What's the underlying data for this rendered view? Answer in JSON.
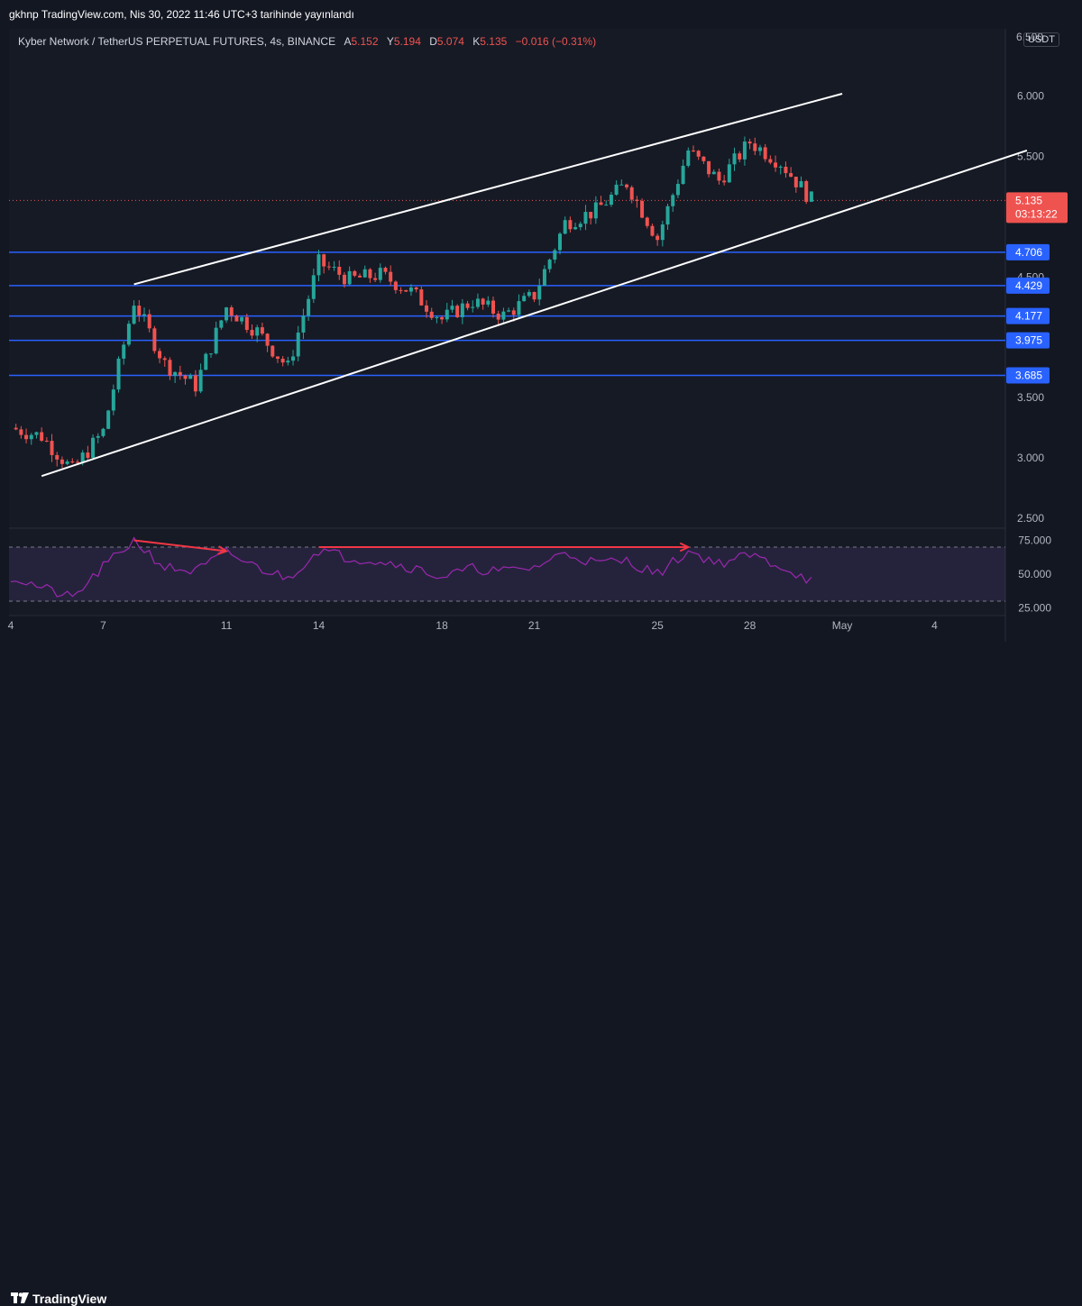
{
  "header": {
    "publisher": "gkhnp TradingView.com, Nis 30, 2022 11:46 UTC+3 tarihinde yayınlandı"
  },
  "legend": {
    "symbol": "Kyber Network / TetherUS PERPETUAL FUTURES, 4s, BINANCE",
    "open_label": "A",
    "open": "5.152",
    "high_label": "Y",
    "high": "5.194",
    "low_label": "D",
    "low": "5.074",
    "close_label": "K",
    "close": "5.135",
    "change": "−0.016 (−0.31%)"
  },
  "currency_badge": "USDT",
  "footer": {
    "brand": "TradingView"
  },
  "colors": {
    "up": "#26a69a",
    "down": "#ef5350",
    "level": "#2962ff",
    "trendline": "#ffffff",
    "rsi": "#9c27b0",
    "arrow": "#f23645"
  },
  "chart_data": {
    "type": "candlestick",
    "price_axis": {
      "min": 2.5,
      "max": 6.0,
      "ticks": [
        "2.500",
        "3.000",
        "3.500",
        "4.000",
        "4.500",
        "5.000",
        "5.500",
        "6.000"
      ],
      "top_partial_label": "6.500"
    },
    "x_axis": {
      "labels": [
        "4",
        "7",
        "11",
        "14",
        "18",
        "21",
        "25",
        "28",
        "May",
        "4"
      ]
    },
    "current_price": {
      "value": 5.135,
      "label": "5.135",
      "countdown": "03:13:22"
    },
    "horizontal_levels": [
      {
        "value": 4.706,
        "label": "4.706"
      },
      {
        "value": 4.429,
        "label": "4.429"
      },
      {
        "value": 4.177,
        "label": "4.177"
      },
      {
        "value": 3.975,
        "label": "3.975"
      },
      {
        "value": 3.685,
        "label": "3.685"
      }
    ],
    "channel": {
      "upper": {
        "from": {
          "date": "Apr 8",
          "price": 4.44
        },
        "to": {
          "date": "May 1",
          "price": 6.02
        }
      },
      "lower": {
        "from": {
          "date": "Apr 5",
          "price": 2.85
        },
        "to": {
          "date": "May 7",
          "price": 5.55
        }
      }
    },
    "approximate_path": [
      {
        "date": "Apr 4",
        "price": 3.25
      },
      {
        "date": "Apr 5",
        "price": 3.18
      },
      {
        "date": "Apr 6",
        "price": 2.9
      },
      {
        "date": "Apr 7",
        "price": 3.22
      },
      {
        "date": "Apr 8",
        "price": 4.3
      },
      {
        "date": "Apr 9",
        "price": 3.78
      },
      {
        "date": "Apr 10",
        "price": 3.6
      },
      {
        "date": "Apr 11",
        "price": 4.25
      },
      {
        "date": "Apr 12",
        "price": 4.05
      },
      {
        "date": "Apr 13",
        "price": 3.75
      },
      {
        "date": "Apr 14",
        "price": 4.62
      },
      {
        "date": "Apr 15",
        "price": 4.48
      },
      {
        "date": "Apr 16",
        "price": 4.52
      },
      {
        "date": "Apr 17",
        "price": 4.38
      },
      {
        "date": "Apr 18",
        "price": 4.15
      },
      {
        "date": "Apr 19",
        "price": 4.3
      },
      {
        "date": "Apr 20",
        "price": 4.18
      },
      {
        "date": "Apr 21",
        "price": 4.35
      },
      {
        "date": "Apr 22",
        "price": 4.95
      },
      {
        "date": "Apr 23",
        "price": 5.05
      },
      {
        "date": "Apr 24",
        "price": 5.28
      },
      {
        "date": "Apr 25",
        "price": 4.82
      },
      {
        "date": "Apr 26",
        "price": 5.55
      },
      {
        "date": "Apr 27",
        "price": 5.3
      },
      {
        "date": "Apr 28",
        "price": 5.62
      },
      {
        "date": "Apr 29",
        "price": 5.45
      },
      {
        "date": "Apr 30",
        "price": 5.14
      }
    ],
    "rsi": {
      "ticks": [
        "25.000",
        "50.000",
        "75.000"
      ],
      "upper_band": 70,
      "lower_band": 30,
      "approximate_values": [
        {
          "date": "Apr 4",
          "value": 48
        },
        {
          "date": "Apr 5",
          "value": 40
        },
        {
          "date": "Apr 6",
          "value": 32
        },
        {
          "date": "Apr 7",
          "value": 55
        },
        {
          "date": "Apr 8",
          "value": 75
        },
        {
          "date": "Apr 9",
          "value": 55
        },
        {
          "date": "Apr 10",
          "value": 52
        },
        {
          "date": "Apr 11",
          "value": 66
        },
        {
          "date": "Apr 12",
          "value": 55
        },
        {
          "date": "Apr 13",
          "value": 47
        },
        {
          "date": "Apr 14",
          "value": 68
        },
        {
          "date": "Apr 15",
          "value": 62
        },
        {
          "date": "Apr 16",
          "value": 60
        },
        {
          "date": "Apr 17",
          "value": 55
        },
        {
          "date": "Apr 18",
          "value": 48
        },
        {
          "date": "Apr 19",
          "value": 54
        },
        {
          "date": "Apr 20",
          "value": 52
        },
        {
          "date": "Apr 21",
          "value": 55
        },
        {
          "date": "Apr 22",
          "value": 66
        },
        {
          "date": "Apr 23",
          "value": 58
        },
        {
          "date": "Apr 24",
          "value": 60
        },
        {
          "date": "Apr 25",
          "value": 50
        },
        {
          "date": "Apr 26",
          "value": 67
        },
        {
          "date": "Apr 27",
          "value": 58
        },
        {
          "date": "Apr 28",
          "value": 64
        },
        {
          "date": "Apr 29",
          "value": 56
        },
        {
          "date": "Apr 30",
          "value": 45
        }
      ],
      "annotations": [
        {
          "from": {
            "date": "Apr 8",
            "value": 75
          },
          "to": {
            "date": "Apr 11",
            "value": 67
          }
        },
        {
          "from": {
            "date": "Apr 14",
            "value": 70
          },
          "to": {
            "date": "Apr 26",
            "value": 70
          }
        }
      ]
    }
  }
}
